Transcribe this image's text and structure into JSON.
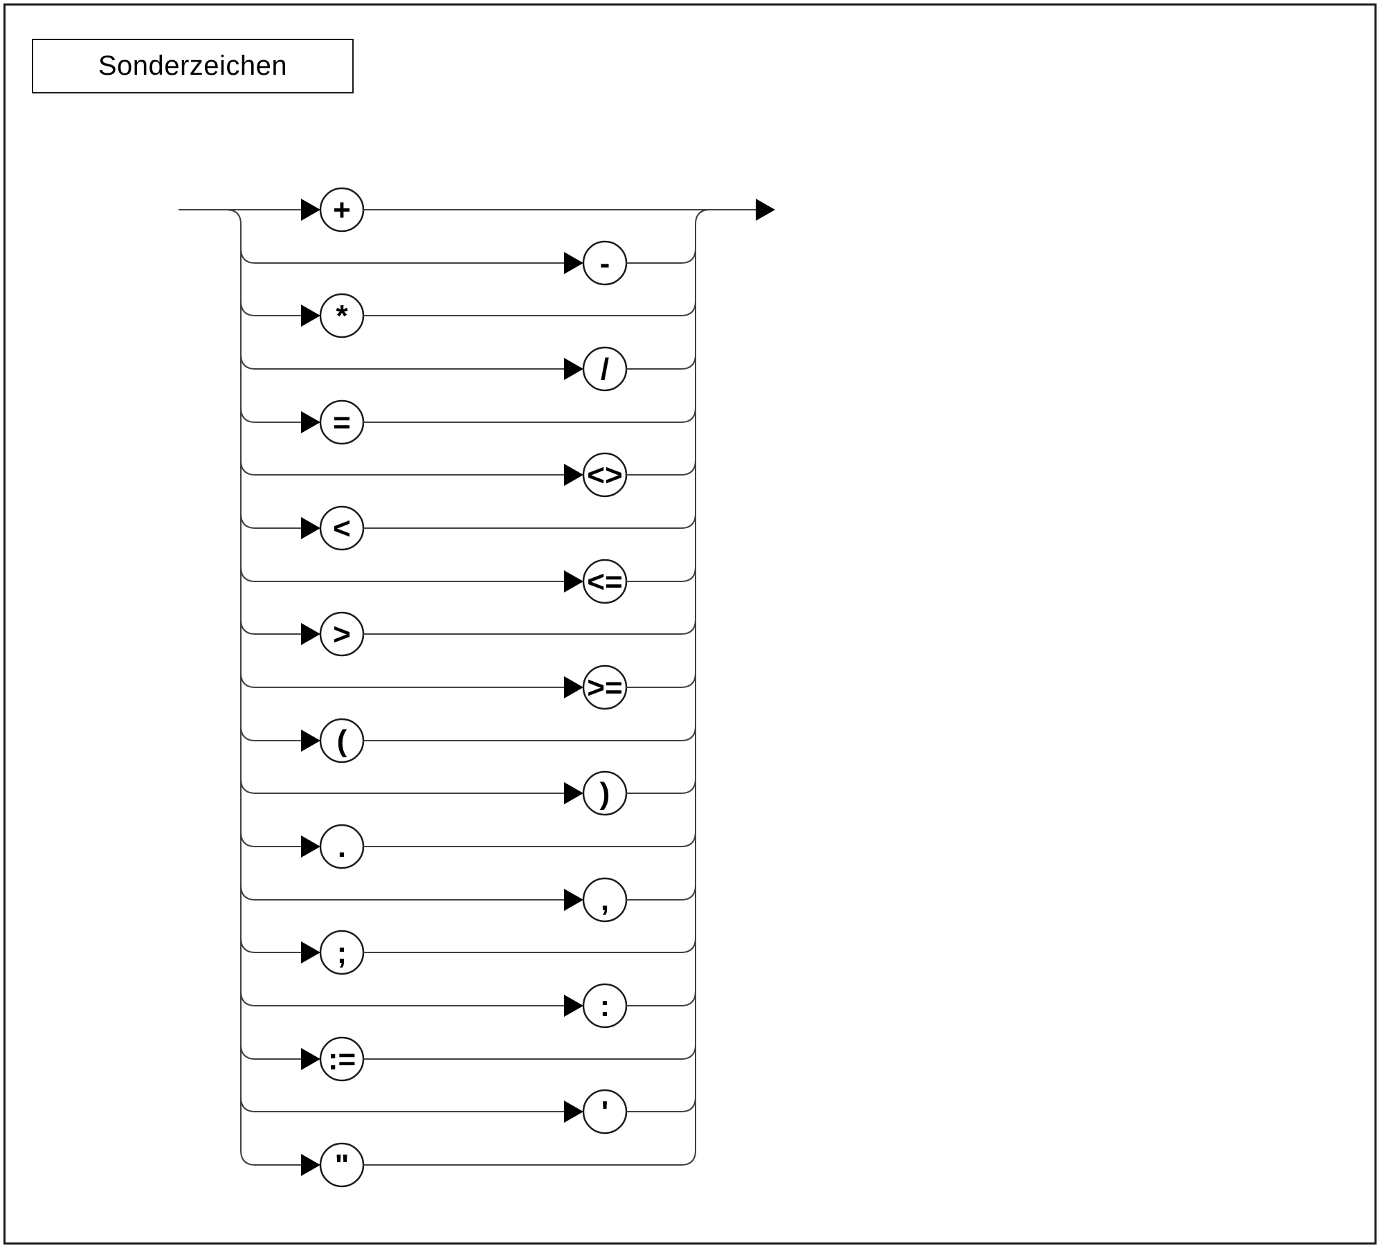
{
  "page": {
    "title": "Sonderzeichen"
  },
  "diagram": {
    "type": "railroad-syntax-diagram",
    "description": "choice of special character terminals",
    "rows": [
      {
        "symbol": "+",
        "side": "left"
      },
      {
        "symbol": "-",
        "side": "right"
      },
      {
        "symbol": "*",
        "side": "left"
      },
      {
        "symbol": "/",
        "side": "right"
      },
      {
        "symbol": "=",
        "side": "left"
      },
      {
        "symbol": "<>",
        "side": "right"
      },
      {
        "symbol": "<",
        "side": "left"
      },
      {
        "symbol": "<=",
        "side": "right"
      },
      {
        "symbol": ">",
        "side": "left"
      },
      {
        "symbol": ">=",
        "side": "right"
      },
      {
        "symbol": "(",
        "side": "left"
      },
      {
        "symbol": ")",
        "side": "right"
      },
      {
        "symbol": ".",
        "side": "left"
      },
      {
        "symbol": ",",
        "side": "right"
      },
      {
        "symbol": ";",
        "side": "left"
      },
      {
        "symbol": ":",
        "side": "right"
      },
      {
        "symbol": ":=",
        "side": "left"
      },
      {
        "symbol": "'",
        "side": "right"
      },
      {
        "symbol": "\"",
        "side": "left"
      }
    ]
  },
  "colors": {
    "line": "#404040",
    "circle_stroke": "#1a1a1a",
    "arrow": "#000000",
    "glyph": "#000000",
    "background": "#ffffff",
    "border": "#1a1a1a"
  }
}
